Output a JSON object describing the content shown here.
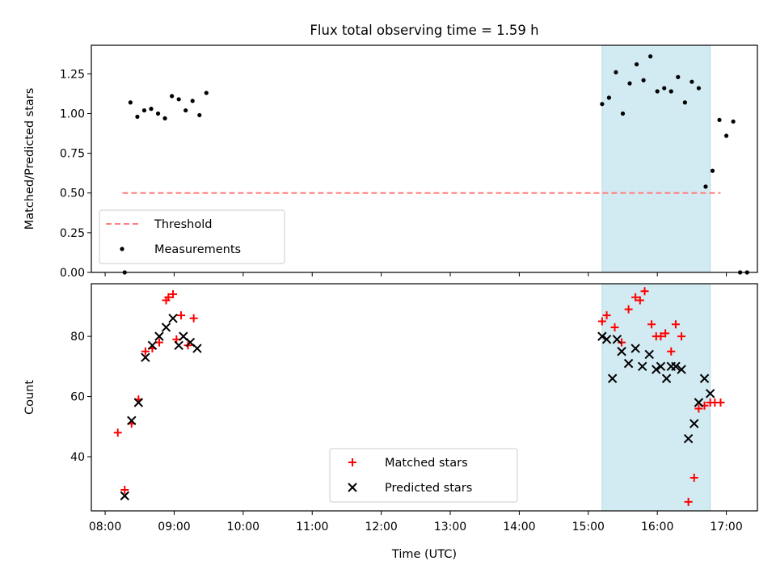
{
  "title": "Flux total observing time = 1.59 h",
  "chart_data": [
    {
      "type": "scatter",
      "ylabel": "Matched/Predicted stars",
      "xlabel": "",
      "xlim": [
        "07:48",
        "17:27"
      ],
      "ylim": [
        0,
        1.43
      ],
      "yticks": [
        "0.00",
        "0.25",
        "0.50",
        "0.75",
        "1.00",
        "1.25"
      ],
      "grid": false,
      "legend_position": "lower-left",
      "shaded_interval": [
        "15:12",
        "16:46"
      ],
      "shade_color": "#add8e6",
      "series": [
        {
          "name": "Threshold",
          "style": "dashed-line",
          "color": "#ff7f7f",
          "points": [
            [
              "08:15",
              0.5
            ],
            [
              "16:55",
              0.5
            ]
          ]
        },
        {
          "name": "Measurements",
          "style": "dot",
          "color": "#000000",
          "points": [
            [
              "08:17",
              0.0
            ],
            [
              "08:22",
              1.07
            ],
            [
              "08:28",
              0.98
            ],
            [
              "08:34",
              1.02
            ],
            [
              "08:40",
              1.03
            ],
            [
              "08:46",
              1.0
            ],
            [
              "08:52",
              0.97
            ],
            [
              "08:58",
              1.11
            ],
            [
              "09:04",
              1.09
            ],
            [
              "09:10",
              1.02
            ],
            [
              "09:16",
              1.08
            ],
            [
              "09:22",
              0.99
            ],
            [
              "09:28",
              1.13
            ],
            [
              "15:12",
              1.06
            ],
            [
              "15:18",
              1.1
            ],
            [
              "15:24",
              1.26
            ],
            [
              "15:30",
              1.0
            ],
            [
              "15:36",
              1.19
            ],
            [
              "15:42",
              1.31
            ],
            [
              "15:48",
              1.21
            ],
            [
              "15:54",
              1.36
            ],
            [
              "16:00",
              1.14
            ],
            [
              "16:06",
              1.16
            ],
            [
              "16:12",
              1.14
            ],
            [
              "16:18",
              1.23
            ],
            [
              "16:24",
              1.07
            ],
            [
              "16:30",
              1.2
            ],
            [
              "16:36",
              1.16
            ],
            [
              "16:42",
              0.54
            ],
            [
              "16:48",
              0.64
            ],
            [
              "16:54",
              0.96
            ],
            [
              "17:00",
              0.86
            ],
            [
              "17:06",
              0.95
            ],
            [
              "17:12",
              0.0
            ],
            [
              "17:18",
              0.0
            ]
          ]
        }
      ]
    },
    {
      "type": "scatter",
      "ylabel": "Count",
      "xlabel": "Time (UTC)",
      "xlim": [
        "07:48",
        "17:27"
      ],
      "ylim": [
        22,
        97.5
      ],
      "yticks": [
        "40",
        "60",
        "80"
      ],
      "xticks": [
        "08:00",
        "09:00",
        "10:00",
        "11:00",
        "12:00",
        "13:00",
        "14:00",
        "15:00",
        "16:00",
        "17:00"
      ],
      "grid": false,
      "legend_position": "lower-center",
      "shaded_interval": [
        "15:12",
        "16:46"
      ],
      "shade_color": "#add8e6",
      "series": [
        {
          "name": "Matched stars",
          "style": "plus",
          "color": "#ff0000",
          "points": [
            [
              "08:11",
              48
            ],
            [
              "08:17",
              29
            ],
            [
              "08:23",
              51
            ],
            [
              "08:29",
              59
            ],
            [
              "08:35",
              75
            ],
            [
              "08:41",
              76
            ],
            [
              "08:47",
              78
            ],
            [
              "08:53",
              92
            ],
            [
              "08:55",
              93
            ],
            [
              "08:59",
              94
            ],
            [
              "09:02",
              79
            ],
            [
              "09:06",
              87
            ],
            [
              "09:12",
              77
            ],
            [
              "09:17",
              86
            ],
            [
              "15:12",
              85
            ],
            [
              "15:16",
              87
            ],
            [
              "15:23",
              83
            ],
            [
              "15:29",
              78
            ],
            [
              "15:35",
              89
            ],
            [
              "15:41",
              93
            ],
            [
              "15:45",
              92
            ],
            [
              "15:49",
              95
            ],
            [
              "15:55",
              84
            ],
            [
              "15:59",
              80
            ],
            [
              "16:03",
              80
            ],
            [
              "16:07",
              81
            ],
            [
              "16:12",
              75
            ],
            [
              "16:16",
              84
            ],
            [
              "16:21",
              80
            ],
            [
              "16:27",
              25
            ],
            [
              "16:32",
              33
            ],
            [
              "16:36",
              56
            ],
            [
              "16:41",
              57
            ],
            [
              "16:46",
              58
            ],
            [
              "16:50",
              58
            ],
            [
              "16:55",
              58
            ]
          ]
        },
        {
          "name": "Predicted stars",
          "style": "x",
          "color": "#000000",
          "points": [
            [
              "08:17",
              27
            ],
            [
              "08:23",
              52
            ],
            [
              "08:29",
              58
            ],
            [
              "08:35",
              73
            ],
            [
              "08:41",
              77
            ],
            [
              "08:47",
              80
            ],
            [
              "08:53",
              83
            ],
            [
              "08:59",
              86
            ],
            [
              "09:04",
              77
            ],
            [
              "09:08",
              80
            ],
            [
              "09:14",
              78
            ],
            [
              "09:20",
              76
            ],
            [
              "15:12",
              80
            ],
            [
              "15:16",
              79
            ],
            [
              "15:21",
              66
            ],
            [
              "15:25",
              79
            ],
            [
              "15:29",
              75
            ],
            [
              "15:35",
              71
            ],
            [
              "15:41",
              76
            ],
            [
              "15:47",
              70
            ],
            [
              "15:53",
              74
            ],
            [
              "15:59",
              69
            ],
            [
              "16:03",
              70
            ],
            [
              "16:08",
              66
            ],
            [
              "16:12",
              70
            ],
            [
              "16:16",
              70
            ],
            [
              "16:21",
              69
            ],
            [
              "16:27",
              46
            ],
            [
              "16:32",
              51
            ],
            [
              "16:36",
              58
            ],
            [
              "16:41",
              66
            ],
            [
              "16:46",
              61
            ]
          ]
        }
      ]
    }
  ]
}
